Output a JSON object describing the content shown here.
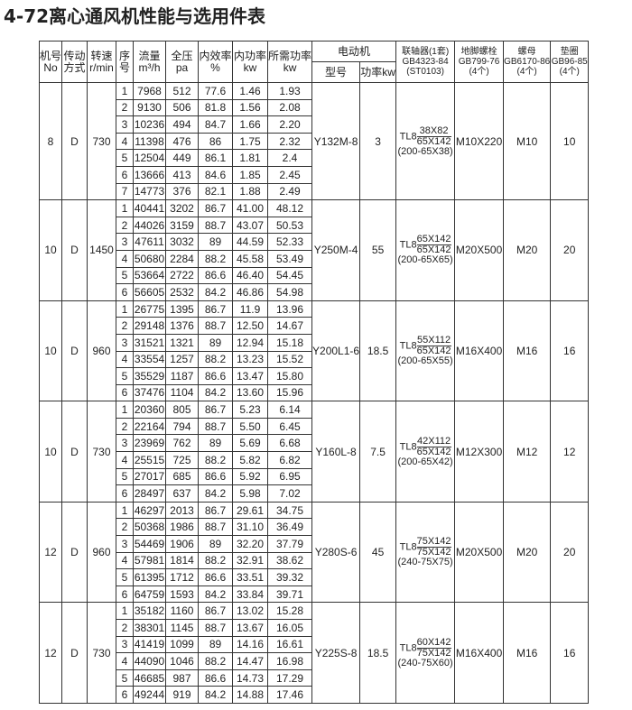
{
  "title": "4-72离心通风机性能与选用件表",
  "headers": {
    "no": "机号",
    "no2": "No",
    "drive": "传动",
    "drive2": "方式",
    "speed": "转速",
    "speed2": "r/min",
    "seq": "序",
    "seq2": "号",
    "flow": "流量",
    "flow2": "m³/h",
    "pressure": "全压",
    "pressure2": "pa",
    "eff": "内效率",
    "eff2": "%",
    "inpower": "内功率",
    "inpower2": "kw",
    "reqpower": "所需功率",
    "reqpower2": "kw",
    "motor": "电动机",
    "model": "型号",
    "power": "功率kw",
    "coupling": "联轴器(1套)",
    "coupling2": "GB4323-84",
    "coupling3": "(ST0103)",
    "bolt": "地脚螺栓",
    "bolt2": "GB799-76",
    "bolt3": "(4个)",
    "nut": "螺母",
    "nut2": "GB6170-86",
    "nut3": "(4个)",
    "washer": "垫圈",
    "washer2": "GB96-85",
    "washer3": "(4个)"
  },
  "groups": [
    {
      "no": "8",
      "drive": "D",
      "speed": "730",
      "model": "Y132M-8",
      "power": "3",
      "coupling": {
        "prefix": "TL8",
        "num": "38X82",
        "den": "65X142",
        "spec": "(200-65X38)"
      },
      "bolt": "M10X220",
      "nut": "M10",
      "washer": "10",
      "rows": [
        [
          "1",
          "7968",
          "512",
          "77.6",
          "1.46",
          "1.93"
        ],
        [
          "2",
          "9130",
          "506",
          "81.8",
          "1.56",
          "2.08"
        ],
        [
          "3",
          "10236",
          "494",
          "84.7",
          "1.66",
          "2.20"
        ],
        [
          "4",
          "11398",
          "476",
          "86",
          "1.75",
          "2.32"
        ],
        [
          "5",
          "12504",
          "449",
          "86.1",
          "1.81",
          "2.4"
        ],
        [
          "6",
          "13666",
          "413",
          "84.6",
          "1.85",
          "2.45"
        ],
        [
          "7",
          "14773",
          "376",
          "82.1",
          "1.88",
          "2.49"
        ]
      ]
    },
    {
      "no": "10",
      "drive": "D",
      "speed": "1450",
      "model": "Y250M-4",
      "power": "55",
      "coupling": {
        "prefix": "TL8",
        "num": "65X142",
        "den": "65X142",
        "spec": "(200-65X65)"
      },
      "bolt": "M20X500",
      "nut": "M20",
      "washer": "20",
      "rows": [
        [
          "1",
          "40441",
          "3202",
          "86.7",
          "41.00",
          "48.12"
        ],
        [
          "2",
          "44026",
          "3159",
          "88.7",
          "43.07",
          "50.53"
        ],
        [
          "3",
          "47611",
          "3032",
          "89",
          "44.59",
          "52.33"
        ],
        [
          "4",
          "50680",
          "2284",
          "88.2",
          "45.58",
          "53.49"
        ],
        [
          "5",
          "53664",
          "2722",
          "86.6",
          "46.40",
          "54.45"
        ],
        [
          "6",
          "56605",
          "2532",
          "84.2",
          "46.86",
          "54.98"
        ]
      ]
    },
    {
      "no": "10",
      "drive": "D",
      "speed": "960",
      "model": "Y200L1-6",
      "power": "18.5",
      "coupling": {
        "prefix": "TL8",
        "num": "55X112",
        "den": "65X142",
        "spec": "(200-65X55)"
      },
      "bolt": "M16X400",
      "nut": "M16",
      "washer": "16",
      "rows": [
        [
          "1",
          "26775",
          "1395",
          "86.7",
          "11.9",
          "13.96"
        ],
        [
          "2",
          "29148",
          "1376",
          "88.7",
          "12.50",
          "14.67"
        ],
        [
          "3",
          "31521",
          "1321",
          "89",
          "12.94",
          "15.18"
        ],
        [
          "4",
          "33554",
          "1257",
          "88.2",
          "13.23",
          "15.52"
        ],
        [
          "5",
          "35529",
          "1187",
          "86.6",
          "13.47",
          "15.80"
        ],
        [
          "6",
          "37476",
          "1104",
          "84.2",
          "13.60",
          "15.96"
        ]
      ]
    },
    {
      "no": "10",
      "drive": "D",
      "speed": "730",
      "model": "Y160L-8",
      "power": "7.5",
      "coupling": {
        "prefix": "TL8",
        "num": "42X112",
        "den": "65X142",
        "spec": "(200-65X42)"
      },
      "bolt": "M12X300",
      "nut": "M12",
      "washer": "12",
      "rows": [
        [
          "1",
          "20360",
          "805",
          "86.7",
          "5.23",
          "6.14"
        ],
        [
          "2",
          "22164",
          "794",
          "88.7",
          "5.50",
          "6.45"
        ],
        [
          "3",
          "23969",
          "762",
          "89",
          "5.69",
          "6.68"
        ],
        [
          "4",
          "25515",
          "725",
          "88.2",
          "5.82",
          "6.82"
        ],
        [
          "5",
          "27017",
          "685",
          "86.6",
          "5.92",
          "6.95"
        ],
        [
          "6",
          "28497",
          "637",
          "84.2",
          "5.98",
          "7.02"
        ]
      ]
    },
    {
      "no": "12",
      "drive": "D",
      "speed": "960",
      "model": "Y280S-6",
      "power": "45",
      "coupling": {
        "prefix": "TL8",
        "num": "75X142",
        "den": "75X142",
        "spec": "(240-75X75)"
      },
      "bolt": "M20X500",
      "nut": "M20",
      "washer": "20",
      "rows": [
        [
          "1",
          "46297",
          "2013",
          "86.7",
          "29.61",
          "34.75"
        ],
        [
          "2",
          "50368",
          "1986",
          "88.7",
          "31.10",
          "36.49"
        ],
        [
          "3",
          "54469",
          "1906",
          "89",
          "32.20",
          "37.79"
        ],
        [
          "4",
          "57981",
          "1814",
          "88.2",
          "32.91",
          "38.62"
        ],
        [
          "5",
          "61395",
          "1712",
          "86.6",
          "33.51",
          "39.32"
        ],
        [
          "6",
          "64759",
          "1593",
          "84.2",
          "33.84",
          "39.71"
        ]
      ]
    },
    {
      "no": "12",
      "drive": "D",
      "speed": "730",
      "model": "Y225S-8",
      "power": "18.5",
      "coupling": {
        "prefix": "TL8",
        "num": "60X142",
        "den": "75X142",
        "spec": "(240-75X60)"
      },
      "bolt": "M16X400",
      "nut": "M16",
      "washer": "16",
      "rows": [
        [
          "1",
          "35182",
          "1160",
          "86.7",
          "13.02",
          "15.28"
        ],
        [
          "2",
          "38301",
          "1145",
          "88.7",
          "13.67",
          "16.05"
        ],
        [
          "3",
          "41419",
          "1099",
          "89",
          "14.16",
          "16.61"
        ],
        [
          "4",
          "44090",
          "1046",
          "88.2",
          "14.47",
          "16.98"
        ],
        [
          "5",
          "46685",
          "987",
          "86.6",
          "14.73",
          "17.29"
        ],
        [
          "6",
          "49244",
          "919",
          "84.2",
          "14.88",
          "17.46"
        ]
      ]
    }
  ]
}
